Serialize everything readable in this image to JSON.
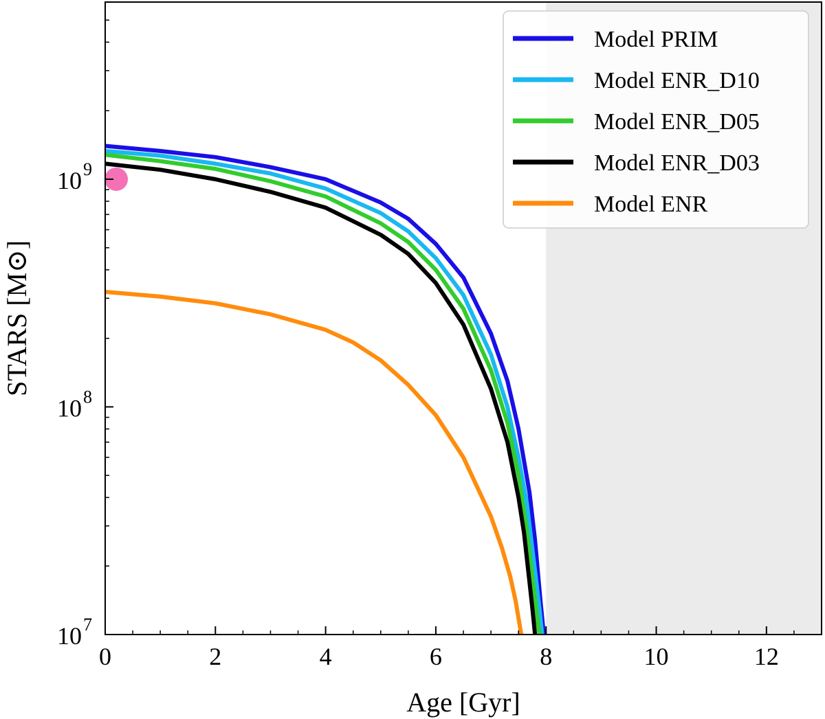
{
  "chart_data": {
    "type": "line",
    "title": "",
    "xlabel": "Age [Gyr]",
    "ylabel": "STARS [M⊙]",
    "yscale": "log",
    "xlim": [
      0,
      13
    ],
    "ylim": [
      10000000,
      6000000000
    ],
    "x_ticks": [
      0,
      2,
      4,
      6,
      8,
      10,
      12
    ],
    "x_tick_labels": [
      "0",
      "2",
      "4",
      "6",
      "8",
      "10",
      "12"
    ],
    "y_ticks": [
      {
        "value": 10000000,
        "base": "10",
        "exponent": "7"
      },
      {
        "value": 100000000,
        "base": "10",
        "exponent": "8"
      },
      {
        "value": 1000000000,
        "base": "10",
        "exponent": "9"
      }
    ],
    "shaded_region": {
      "x_from": 8,
      "x_to": 13,
      "color": "#ebebeb"
    },
    "legend_position": "top-right",
    "series": [
      {
        "name": "Model PRIM",
        "color": "#1a0fe6",
        "x": [
          0,
          1,
          2,
          3,
          4,
          5,
          5.5,
          6,
          6.5,
          7,
          7.3,
          7.5,
          7.7,
          7.8,
          7.9,
          7.96
        ],
        "values": [
          1400000000,
          1330000000,
          1250000000,
          1130000000,
          1000000000,
          790000000,
          670000000,
          520000000,
          370000000,
          210000000,
          130000000,
          80000000,
          42000000,
          26000000,
          14000000,
          10000000
        ]
      },
      {
        "name": "Model ENR_D10",
        "color": "#1ab8f0",
        "x": [
          0,
          1,
          2,
          3,
          4,
          5,
          5.5,
          6,
          6.5,
          7,
          7.3,
          7.5,
          7.65,
          7.8,
          7.88,
          7.93
        ],
        "values": [
          1330000000,
          1270000000,
          1170000000,
          1060000000,
          910000000,
          710000000,
          590000000,
          450000000,
          310000000,
          170000000,
          100000000,
          60000000,
          38000000,
          19000000,
          13000000,
          10000000
        ]
      },
      {
        "name": "Model ENR_D05",
        "color": "#33cc2e",
        "x": [
          0,
          1,
          2,
          3,
          4,
          5,
          5.5,
          6,
          6.5,
          7,
          7.3,
          7.5,
          7.65,
          7.75,
          7.82,
          7.88
        ],
        "values": [
          1280000000,
          1200000000,
          1110000000,
          980000000,
          840000000,
          640000000,
          530000000,
          400000000,
          270000000,
          145000000,
          85000000,
          50000000,
          29000000,
          18000000,
          13000000,
          10000000
        ]
      },
      {
        "name": "Model ENR_D03",
        "color": "#000000",
        "x": [
          0,
          1,
          2,
          3,
          4,
          5,
          5.5,
          6,
          6.5,
          7,
          7.3,
          7.5,
          7.6,
          7.7,
          7.76,
          7.8
        ],
        "values": [
          1170000000,
          1100000000,
          1000000000,
          880000000,
          750000000,
          570000000,
          470000000,
          350000000,
          230000000,
          120000000,
          70000000,
          40000000,
          28000000,
          17000000,
          12500000,
          10000000
        ]
      },
      {
        "name": "Model ENR",
        "color": "#ff8c0d",
        "x": [
          0,
          1,
          2,
          3,
          4,
          4.5,
          5,
          5.5,
          6,
          6.5,
          7,
          7.2,
          7.35,
          7.45,
          7.55
        ],
        "values": [
          320000000,
          305000000,
          285000000,
          255000000,
          218000000,
          192000000,
          160000000,
          125000000,
          92000000,
          60000000,
          33000000,
          24000000,
          18000000,
          14000000,
          10000000
        ]
      }
    ],
    "markers": [
      {
        "name": "observation",
        "x": 0.2,
        "y": 1000000000,
        "color": "#f571b5"
      }
    ]
  }
}
